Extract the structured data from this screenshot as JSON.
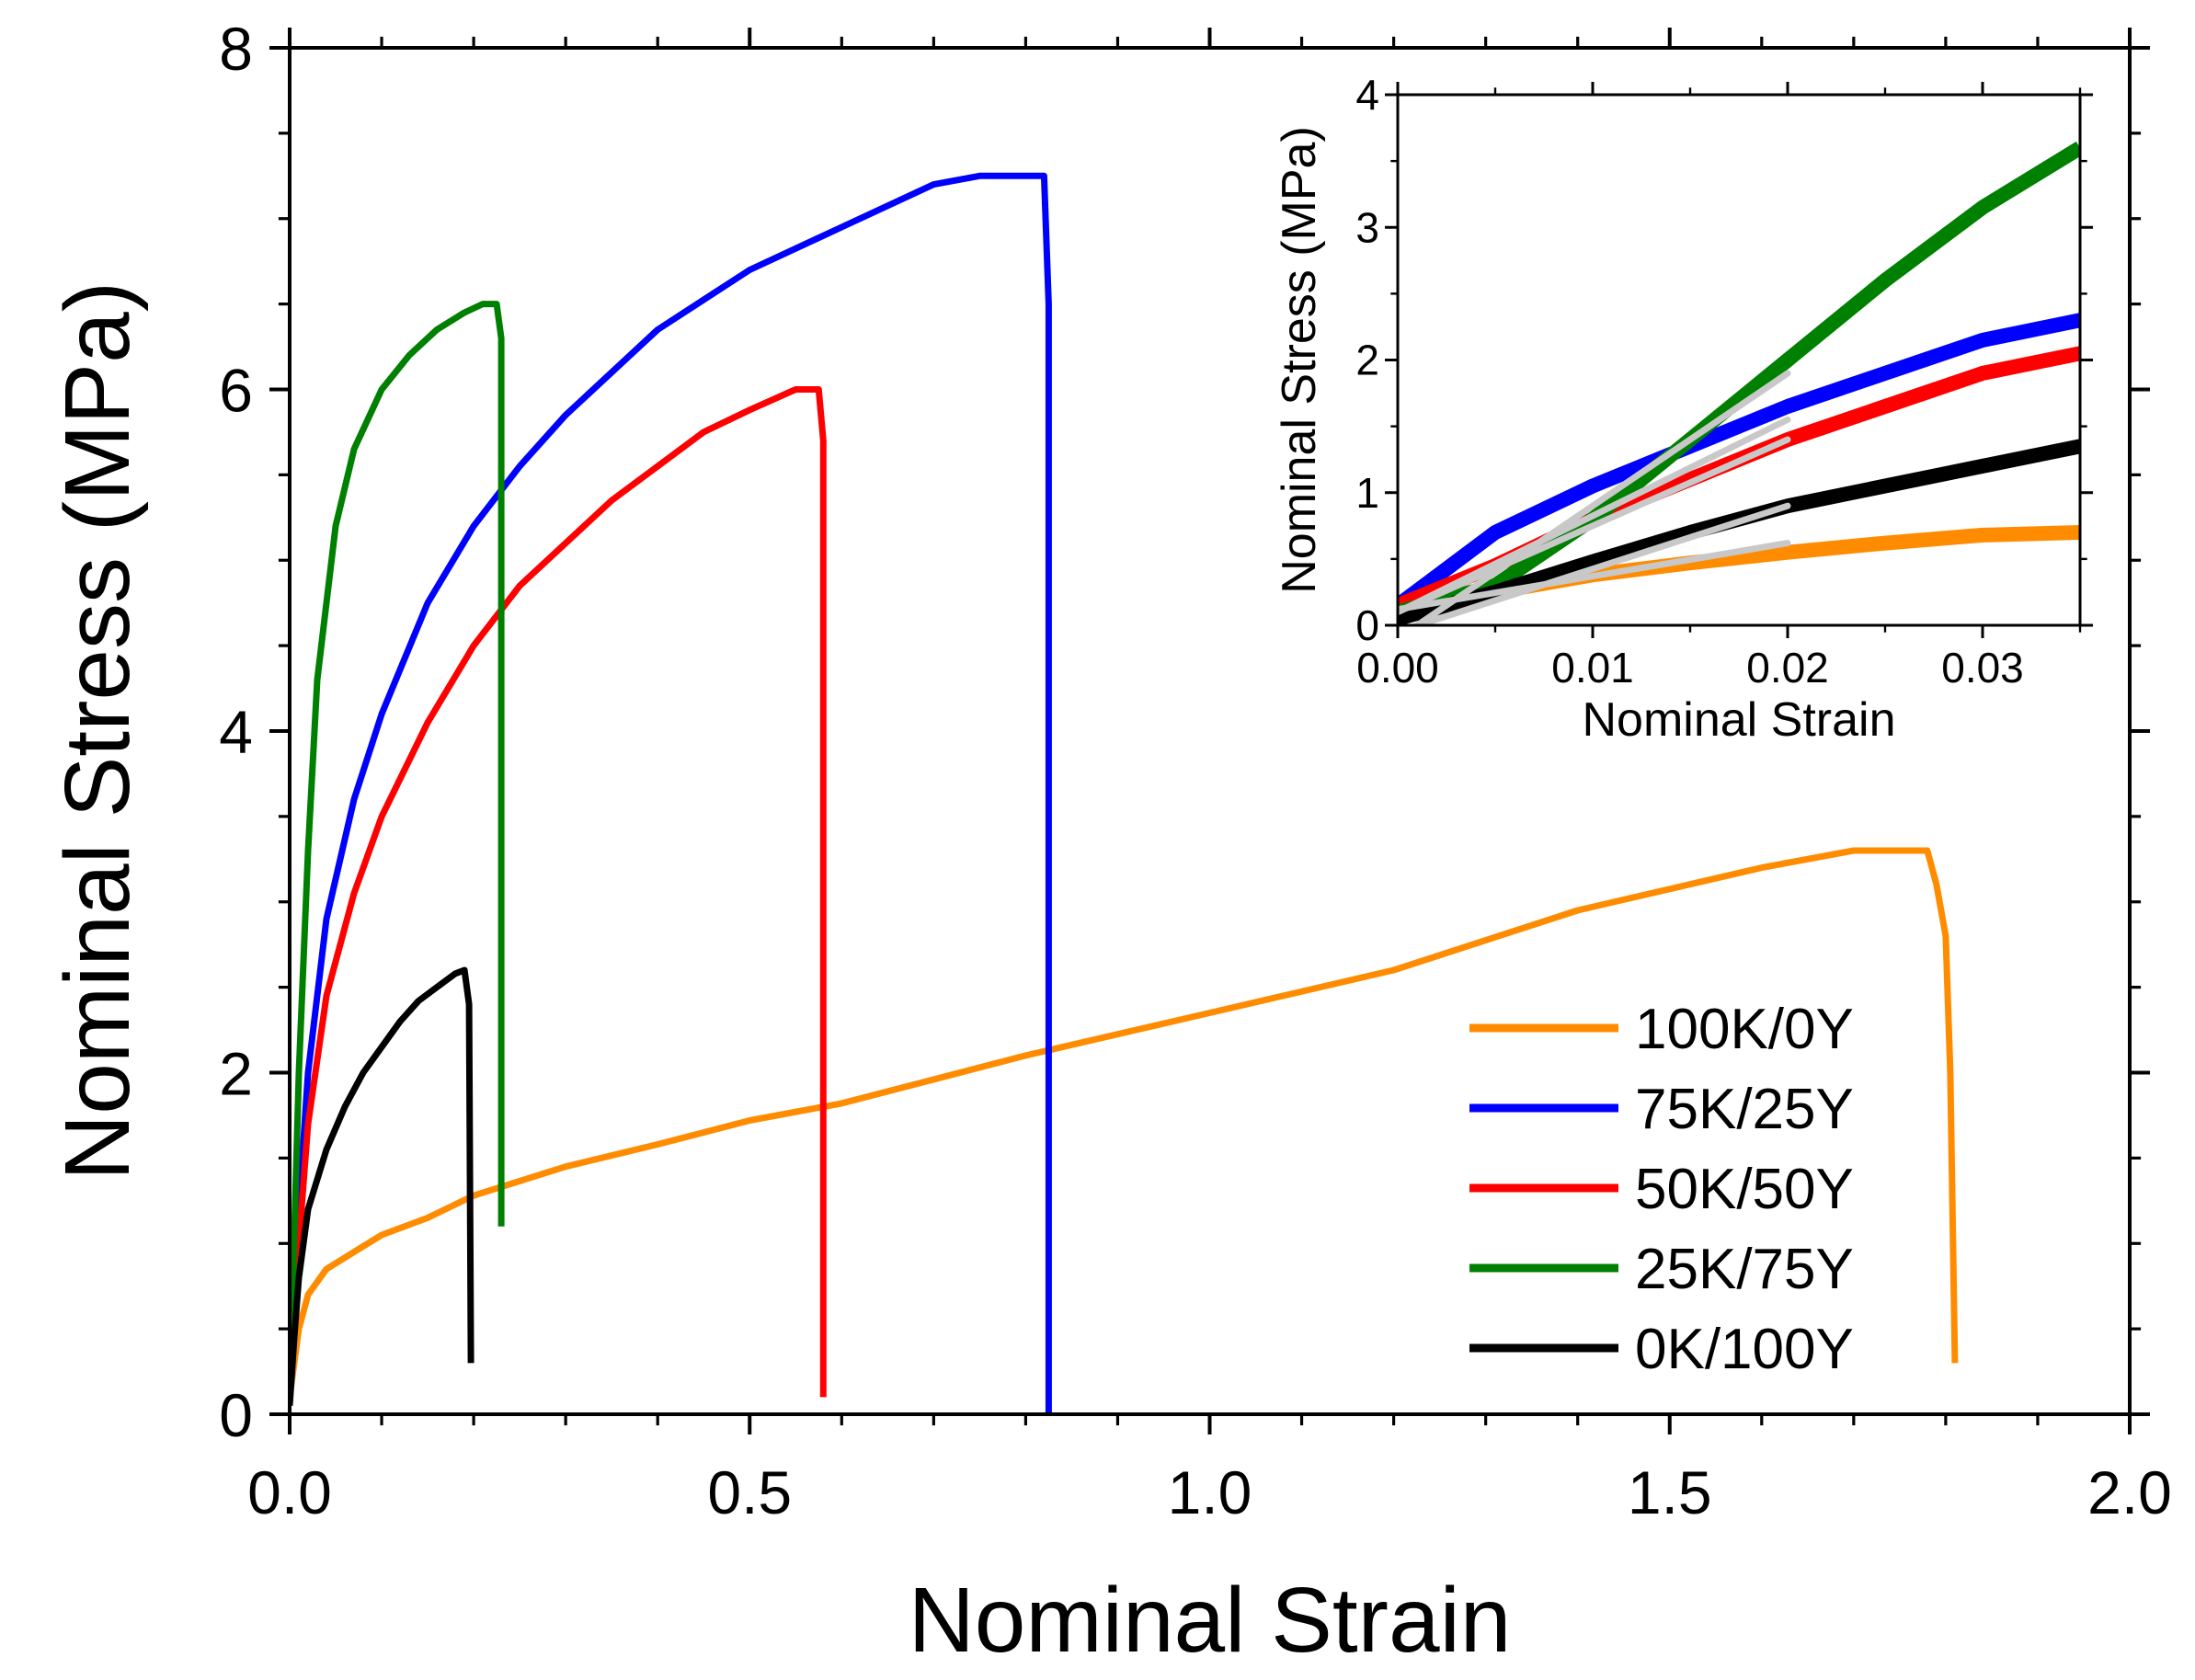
{
  "chart_data": [
    {
      "type": "line",
      "title": "",
      "xlabel": "Nominal Strain",
      "ylabel": "Nominal Stress (MPa)",
      "xlim": [
        0.0,
        2.0
      ],
      "ylim": [
        0,
        8
      ],
      "x_ticks": [
        "0.0",
        "0.5",
        "1.0",
        "1.5",
        "2.0"
      ],
      "y_ticks": [
        "0",
        "2",
        "4",
        "6",
        "8"
      ],
      "grid": false,
      "legend_position": "bottom-right",
      "series": [
        {
          "name": "100K/0Y",
          "color": "#FF8C00",
          "x": [
            0.0,
            0.01,
            0.02,
            0.04,
            0.07,
            0.1,
            0.15,
            0.2,
            0.3,
            0.4,
            0.5,
            0.6,
            0.8,
            1.0,
            1.2,
            1.4,
            1.6,
            1.7,
            1.78,
            1.79,
            1.8,
            1.805,
            1.81
          ],
          "y": [
            0.1,
            0.5,
            0.7,
            0.85,
            0.95,
            1.05,
            1.15,
            1.28,
            1.45,
            1.58,
            1.72,
            1.82,
            2.1,
            2.35,
            2.6,
            2.95,
            3.2,
            3.3,
            3.3,
            3.1,
            2.8,
            2.0,
            0.3
          ]
        },
        {
          "name": "75K/25Y",
          "color": "#0000FF",
          "x": [
            0.0,
            0.01,
            0.02,
            0.04,
            0.07,
            0.1,
            0.15,
            0.2,
            0.25,
            0.3,
            0.4,
            0.5,
            0.6,
            0.7,
            0.75,
            0.82,
            0.825,
            0.825
          ],
          "y": [
            0.1,
            1.2,
            2.0,
            2.9,
            3.6,
            4.1,
            4.75,
            5.2,
            5.55,
            5.85,
            6.35,
            6.7,
            6.95,
            7.2,
            7.25,
            7.25,
            6.5,
            0.0
          ]
        },
        {
          "name": "50K/50Y",
          "color": "#FF0000",
          "x": [
            0.0,
            0.01,
            0.02,
            0.04,
            0.07,
            0.1,
            0.15,
            0.2,
            0.25,
            0.3,
            0.35,
            0.4,
            0.45,
            0.5,
            0.55,
            0.575,
            0.58,
            0.58
          ],
          "y": [
            0.1,
            1.0,
            1.7,
            2.45,
            3.05,
            3.5,
            4.05,
            4.5,
            4.85,
            5.1,
            5.35,
            5.55,
            5.75,
            5.88,
            6.0,
            6.0,
            5.7,
            0.1
          ]
        },
        {
          "name": "25K/75Y",
          "color": "#008000",
          "x": [
            0.0,
            0.01,
            0.02,
            0.03,
            0.05,
            0.07,
            0.1,
            0.13,
            0.16,
            0.19,
            0.21,
            0.225,
            0.23,
            0.23
          ],
          "y": [
            0.1,
            2.0,
            3.3,
            4.3,
            5.2,
            5.65,
            6.0,
            6.2,
            6.35,
            6.45,
            6.5,
            6.5,
            6.3,
            1.1
          ]
        },
        {
          "name": "0K/100Y",
          "color": "#000000",
          "x": [
            0.0,
            0.005,
            0.01,
            0.02,
            0.04,
            0.06,
            0.08,
            0.1,
            0.12,
            0.14,
            0.16,
            0.18,
            0.19,
            0.195,
            0.197
          ],
          "y": [
            0.05,
            0.45,
            0.8,
            1.2,
            1.55,
            1.8,
            2.0,
            2.15,
            2.3,
            2.42,
            2.5,
            2.58,
            2.6,
            2.4,
            0.3
          ]
        }
      ]
    },
    {
      "type": "line",
      "title": "",
      "xlabel": "Nominal Strain",
      "ylabel": "Nominal Stress (MPa)",
      "xlim": [
        0.0,
        0.035
      ],
      "ylim": [
        0,
        4
      ],
      "x_ticks": [
        "0.00",
        "0.01",
        "0.02",
        "0.03"
      ],
      "y_ticks": [
        "0",
        "1",
        "2",
        "3",
        "4"
      ],
      "grid": false,
      "legend_position": "none",
      "series": [
        {
          "name": "100K/0Y",
          "color": "#FF8C00",
          "x": [
            0.0,
            0.005,
            0.01,
            0.015,
            0.02,
            0.025,
            0.03,
            0.035
          ],
          "y": [
            0.1,
            0.25,
            0.38,
            0.47,
            0.55,
            0.62,
            0.68,
            0.7
          ]
        },
        {
          "name": "75K/25Y",
          "color": "#0000FF",
          "x": [
            0.0,
            0.005,
            0.01,
            0.015,
            0.02,
            0.025,
            0.03,
            0.035
          ],
          "y": [
            0.15,
            0.7,
            1.05,
            1.35,
            1.65,
            1.9,
            2.15,
            2.3
          ]
        },
        {
          "name": "50K/50Y",
          "color": "#FF0000",
          "x": [
            0.0,
            0.005,
            0.01,
            0.015,
            0.02,
            0.025,
            0.03,
            0.035
          ],
          "y": [
            0.15,
            0.45,
            0.8,
            1.1,
            1.4,
            1.65,
            1.9,
            2.05
          ]
        },
        {
          "name": "25K/75Y",
          "color": "#008000",
          "x": [
            0.0,
            0.005,
            0.01,
            0.015,
            0.02,
            0.025,
            0.03,
            0.035
          ],
          "y": [
            0.1,
            0.3,
            0.8,
            1.4,
            2.0,
            2.6,
            3.15,
            3.6
          ]
        },
        {
          "name": "0K/100Y",
          "color": "#000000",
          "x": [
            0.0,
            0.005,
            0.01,
            0.015,
            0.02,
            0.025,
            0.03,
            0.035
          ],
          "y": [
            0.05,
            0.25,
            0.48,
            0.7,
            0.9,
            1.05,
            1.2,
            1.35
          ]
        }
      ],
      "fit_lines": {
        "color": "#C8C8C8",
        "lines": [
          {
            "x": [
              0.0,
              0.02
            ],
            "y": [
              0.12,
              0.62
            ]
          },
          {
            "x": [
              0.0,
              0.02
            ],
            "y": [
              0.1,
              1.55
            ]
          },
          {
            "x": [
              0.0,
              0.02
            ],
            "y": [
              0.1,
              1.4
            ]
          },
          {
            "x": [
              0.0,
              0.02
            ],
            "y": [
              -0.1,
              1.9
            ]
          },
          {
            "x": [
              0.0,
              0.02
            ],
            "y": [
              -0.05,
              0.9
            ]
          }
        ]
      }
    }
  ]
}
